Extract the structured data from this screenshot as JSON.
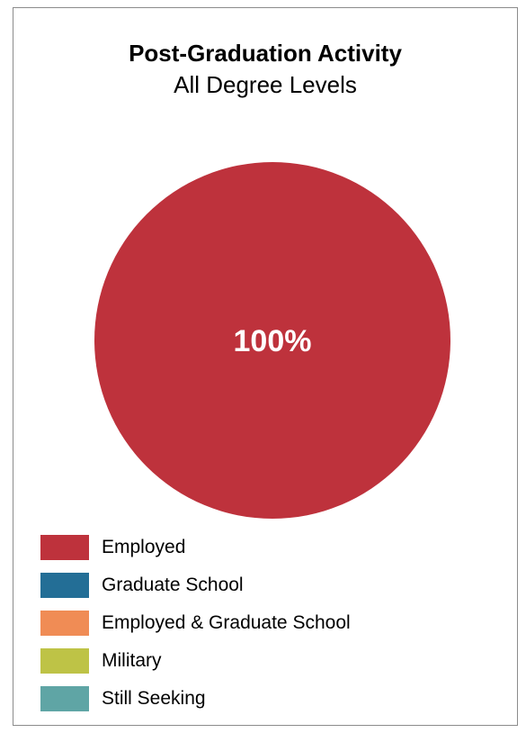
{
  "chart_data": {
    "type": "pie",
    "title": "Post-Graduation Activity",
    "subtitle": "All Degree Levels",
    "categories": [
      "Employed",
      "Graduate School",
      "Employed & Graduate School",
      "Military",
      "Still Seeking"
    ],
    "values": [
      100,
      0,
      0,
      0,
      0
    ],
    "data_labels": [
      "100%",
      "",
      "",
      "",
      ""
    ],
    "colors": [
      "#be323c",
      "#236e96",
      "#f08c55",
      "#bec346",
      "#5fa5a5"
    ],
    "legend_position": "bottom-left"
  }
}
